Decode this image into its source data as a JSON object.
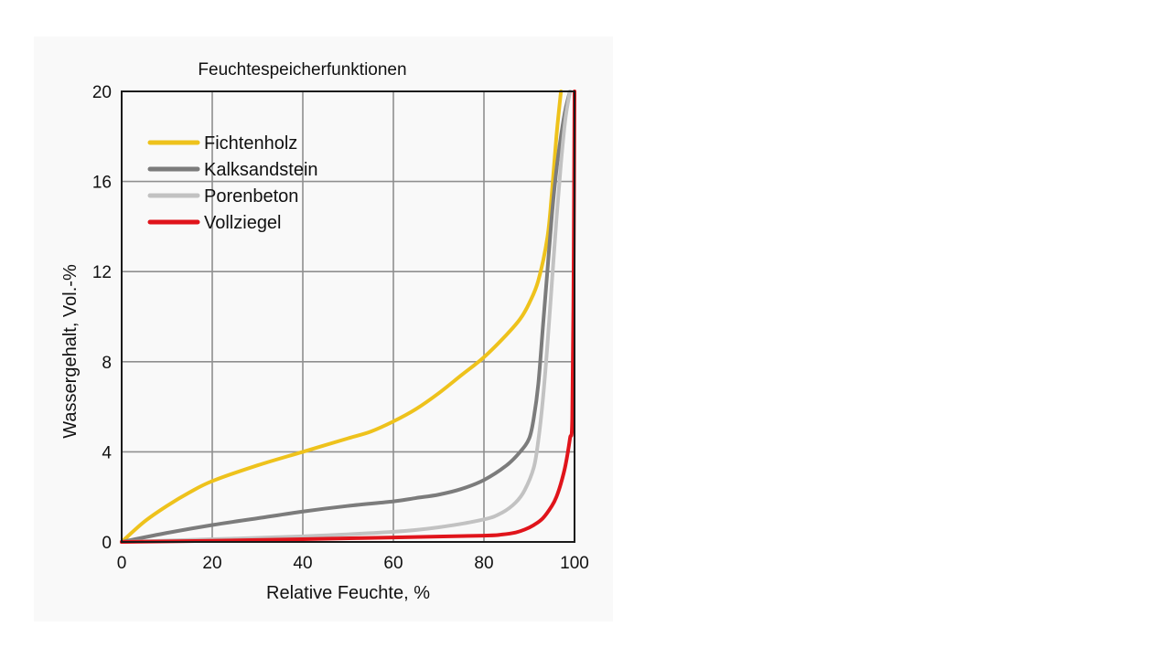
{
  "chart_data": {
    "type": "line",
    "title": "Feuchtespeicherfunktionen",
    "xlabel": "Relative Feuchte, %",
    "ylabel": "Wassergehalt, Vol.-%",
    "xlim": [
      0,
      100
    ],
    "ylim": [
      0,
      20
    ],
    "xticks": [
      "0",
      "20",
      "40",
      "60",
      "80",
      "100"
    ],
    "yticks": [
      "0",
      "4",
      "8",
      "12",
      "16",
      "20"
    ],
    "grid": true,
    "legend_position": "top-left",
    "series": [
      {
        "name": "Fichtenholz",
        "color": "#eec21c",
        "x": [
          0,
          5,
          10,
          15,
          20,
          30,
          40,
          50,
          55,
          60,
          65,
          70,
          75,
          80,
          85,
          88,
          90,
          92,
          94,
          95,
          96,
          97
        ],
        "y": [
          0,
          0.9,
          1.6,
          2.2,
          2.7,
          3.4,
          4.0,
          4.6,
          4.9,
          5.35,
          5.9,
          6.6,
          7.4,
          8.2,
          9.2,
          9.9,
          10.6,
          11.6,
          13.5,
          15.5,
          18.0,
          20.0
        ]
      },
      {
        "name": "Kalksandstein",
        "color": "#7c7c7c",
        "x": [
          0,
          10,
          20,
          30,
          40,
          50,
          60,
          65,
          70,
          75,
          80,
          85,
          88,
          90,
          91,
          92,
          93,
          94,
          95,
          96,
          97,
          98,
          99
        ],
        "y": [
          0,
          0.4,
          0.75,
          1.05,
          1.35,
          1.6,
          1.8,
          1.95,
          2.1,
          2.35,
          2.75,
          3.4,
          4.0,
          4.6,
          5.5,
          7.0,
          9.5,
          12.0,
          14.5,
          16.5,
          18.0,
          19.2,
          20.0
        ]
      },
      {
        "name": "Porenbeton",
        "color": "#c2c2c2",
        "x": [
          0,
          20,
          40,
          60,
          70,
          80,
          84,
          87,
          89,
          91,
          92,
          93,
          94,
          95,
          96,
          97,
          98,
          99
        ],
        "y": [
          0,
          0.12,
          0.25,
          0.45,
          0.65,
          1.0,
          1.3,
          1.75,
          2.3,
          3.3,
          4.5,
          6.3,
          8.7,
          11.5,
          14.3,
          16.8,
          18.8,
          20.0
        ]
      },
      {
        "name": "Vollziegel",
        "color": "#e0141b",
        "x": [
          0,
          20,
          40,
          60,
          80,
          84,
          87,
          89,
          91,
          93,
          95,
          96,
          97,
          98,
          99,
          99.5,
          99.8,
          100
        ],
        "y": [
          0,
          0.05,
          0.12,
          0.2,
          0.28,
          0.33,
          0.42,
          0.55,
          0.75,
          1.05,
          1.6,
          2.0,
          2.6,
          3.4,
          4.6,
          5.5,
          12.0,
          20.0
        ]
      }
    ]
  }
}
